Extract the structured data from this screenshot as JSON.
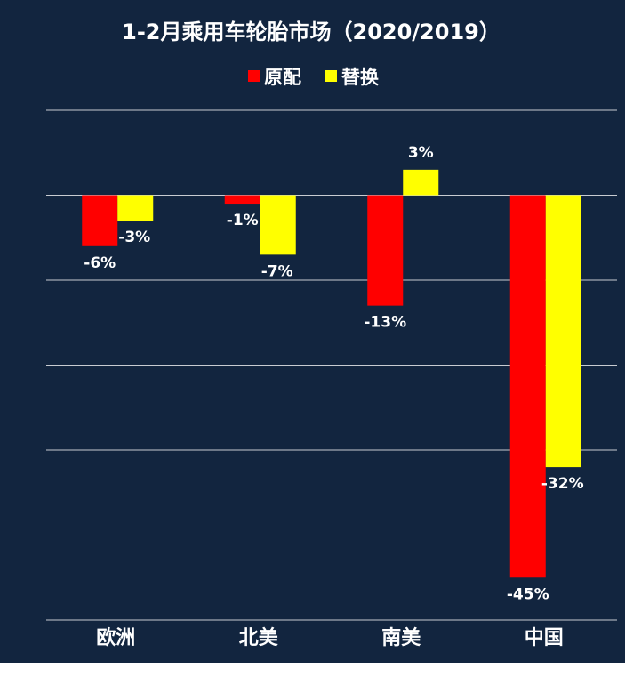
{
  "chart_data": {
    "type": "bar",
    "title": "1-2月乘用车轮胎市场（2020/2019）",
    "categories": [
      "欧洲",
      "北美",
      "南美",
      "中国"
    ],
    "series": [
      {
        "name": "原配",
        "values": [
          -6,
          -1,
          -13,
          -45
        ],
        "labels": [
          "-6%",
          "-1%",
          "-13%",
          "-45%"
        ]
      },
      {
        "name": "替换",
        "values": [
          -3,
          -7,
          3,
          -32
        ],
        "labels": [
          "-3%",
          "-7%",
          "3%",
          "-32%"
        ]
      }
    ],
    "ylim": [
      -50,
      10
    ],
    "grid": true,
    "legend": "top-center",
    "xlabel": "",
    "ylabel": "",
    "colors": {
      "background": "#12253f",
      "series": [
        "#ff0000",
        "#ffff00"
      ],
      "text": "#ffffff",
      "grid": "#c8ccd2"
    }
  }
}
